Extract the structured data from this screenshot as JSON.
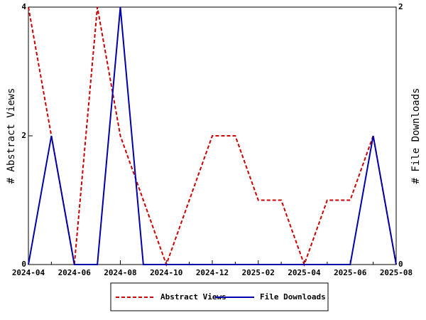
{
  "chart_data": {
    "type": "line",
    "categories": [
      "2024-04",
      null,
      "2024-06",
      null,
      "2024-08",
      null,
      "2024-10",
      null,
      "2024-12",
      null,
      "2025-02",
      null,
      "2025-04",
      null,
      "2025-06",
      null,
      "2025-08"
    ],
    "ylabel": "# Abstract Views",
    "y2label": "# File Downloads",
    "ylim": [
      0,
      4
    ],
    "yticks": [
      0,
      2,
      4
    ],
    "y2lim": [
      0,
      2
    ],
    "y2ticks": [
      0,
      2
    ],
    "legend": "bottom",
    "series": [
      {
        "name": "Abstract Views",
        "color": "#cc0000",
        "dash": true,
        "values": [
          4,
          2,
          0,
          4,
          2,
          1,
          0,
          1,
          2,
          2,
          1,
          1,
          0,
          1,
          1,
          2,
          0
        ]
      },
      {
        "name": "File Downloads",
        "color": "#0000aa",
        "axis": "y2",
        "values": [
          0,
          1,
          0,
          0,
          2,
          0,
          0,
          0,
          0,
          0,
          0,
          0,
          0,
          0,
          0,
          1,
          0
        ]
      }
    ]
  }
}
